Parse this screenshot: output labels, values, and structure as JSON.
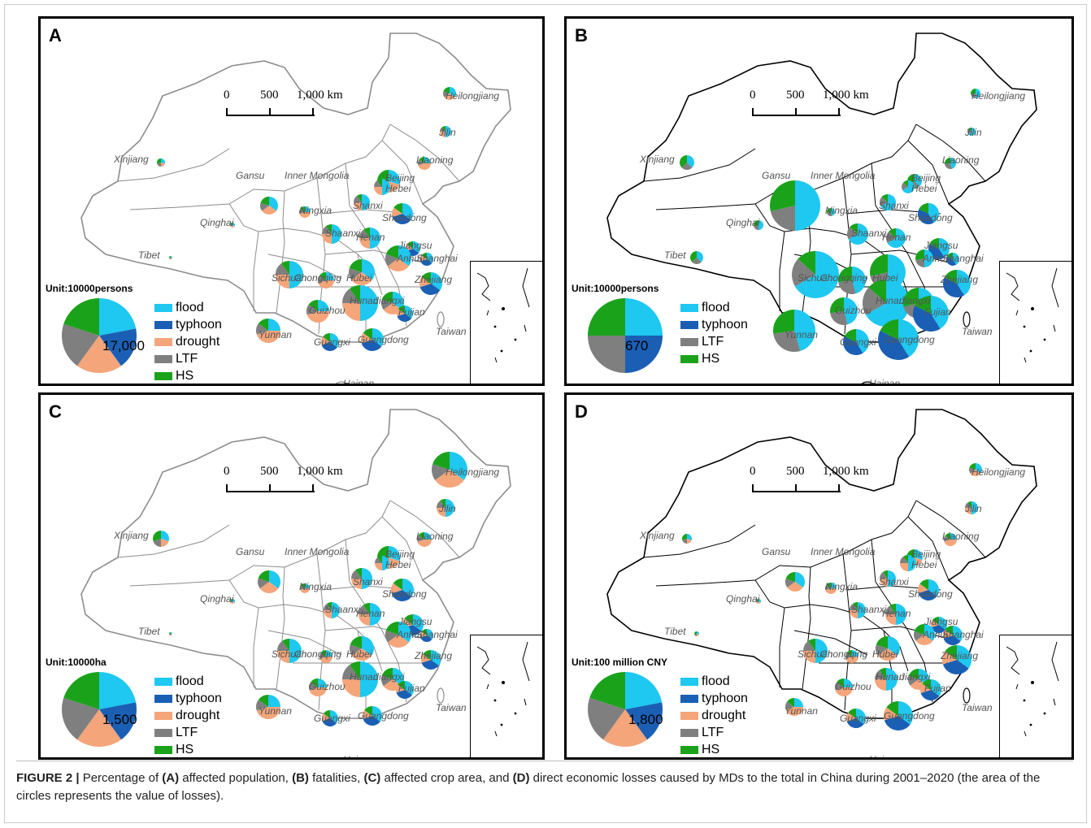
{
  "colors": {
    "flood": "#1ec8f0",
    "typhoon": "#1a5fb4",
    "drought": "#f4a57a",
    "LTF": "#7f7f7f",
    "HS": "#1aa31a"
  },
  "scale": {
    "zero": "0",
    "mid": "500",
    "end": "1,000 km"
  },
  "provinces": [
    "Heilongjiang",
    "Jilin",
    "Liaoning",
    "Xinjiang",
    "Gansu",
    "Inner Mongolia",
    "Beijing",
    "Hebei",
    "Ningxia",
    "Shanxi",
    "Shandong",
    "Qinghai",
    "Shaanxi",
    "Henan",
    "Jiangsu",
    "Tibet",
    "Anhui",
    "Shanghai",
    "Sichuan",
    "Chongqing",
    "Hubei",
    "Zhejiang",
    "Hunan",
    "Jiangxi",
    "Fujian",
    "Yunnan",
    "Guizhou",
    "Guangxi",
    "Guangdong",
    "Taiwan",
    "Hainan"
  ],
  "panels": [
    {
      "label": "A",
      "unit": "Unit:10000persons",
      "total": "17,000",
      "legend": [
        {
          "key": "flood",
          "label": "flood"
        },
        {
          "key": "typhoon",
          "label": "typhoon"
        },
        {
          "key": "drought",
          "label": "drought"
        },
        {
          "key": "LTF",
          "label": "LTF"
        },
        {
          "key": "HS",
          "label": "HS"
        }
      ],
      "share": {
        "flood": 0.22,
        "typhoon": 0.18,
        "drought": 0.2,
        "LTF": 0.2,
        "HS": 0.2
      }
    },
    {
      "label": "B",
      "unit": "Unit:10000persons",
      "total": "670",
      "legend": [
        {
          "key": "flood",
          "label": "flood"
        },
        {
          "key": "typhoon",
          "label": "typhoon"
        },
        {
          "key": "LTF",
          "label": "LTF"
        },
        {
          "key": "HS",
          "label": "HS"
        }
      ],
      "share": {
        "flood": 0.25,
        "typhoon": 0.25,
        "LTF": 0.25,
        "HS": 0.25
      }
    },
    {
      "label": "C",
      "unit": "Unit:10000ha",
      "total": "1,500",
      "legend": [
        {
          "key": "flood",
          "label": "flood"
        },
        {
          "key": "typhoon",
          "label": "typhoon"
        },
        {
          "key": "drought",
          "label": "drought"
        },
        {
          "key": "LTF",
          "label": "LTF"
        },
        {
          "key": "HS",
          "label": "HS"
        }
      ],
      "share": {
        "flood": 0.22,
        "typhoon": 0.18,
        "drought": 0.2,
        "LTF": 0.2,
        "HS": 0.2
      }
    },
    {
      "label": "D",
      "unit": "Unit:100 million CNY",
      "total": "1,800",
      "legend": [
        {
          "key": "flood",
          "label": "flood"
        },
        {
          "key": "typhoon",
          "label": "typhoon"
        },
        {
          "key": "drought",
          "label": "drought"
        },
        {
          "key": "LTF",
          "label": "LTF"
        },
        {
          "key": "HS",
          "label": "HS"
        }
      ],
      "share": {
        "flood": 0.22,
        "typhoon": 0.18,
        "drought": 0.2,
        "LTF": 0.2,
        "HS": 0.2
      }
    }
  ],
  "caption": {
    "prefix": "FIGURE 2 |",
    "t1": " Percentage of ",
    "a": "(A)",
    "t2": " affected population, ",
    "b": "(B)",
    "t3": " fatalities, ",
    "c": "(C)",
    "t4": " affected crop area, and ",
    "d": "(D)",
    "t5": " direct economic losses caused by MDs to the total in China during 2001–2020 (the area of the circles represents the value of losses)."
  }
}
